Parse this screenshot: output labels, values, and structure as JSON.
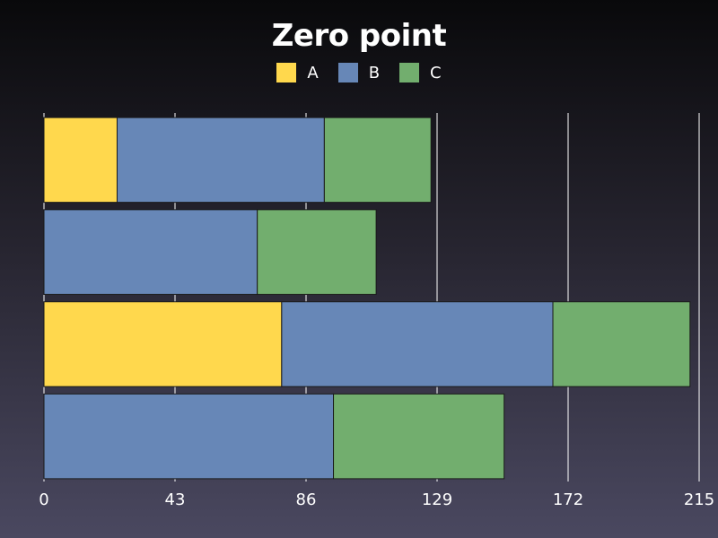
{
  "chart_data": {
    "type": "bar",
    "orientation": "horizontal",
    "stacked": true,
    "title": "Zero point",
    "xlabel": "",
    "ylabel": "",
    "xlim": [
      0,
      215
    ],
    "xticks": [
      "0",
      "43",
      "86",
      "129",
      "172",
      "215"
    ],
    "grid": "vertical",
    "legend_position": "top-center",
    "series": [
      {
        "name": "A",
        "color": "#ffd84d",
        "values": [
          24,
          0,
          78,
          0
        ]
      },
      {
        "name": "B",
        "color": "#6787b7",
        "values": [
          68,
          70,
          89,
          95
        ]
      },
      {
        "name": "C",
        "color": "#72ae6e",
        "values": [
          35,
          39,
          45,
          56
        ]
      }
    ]
  }
}
